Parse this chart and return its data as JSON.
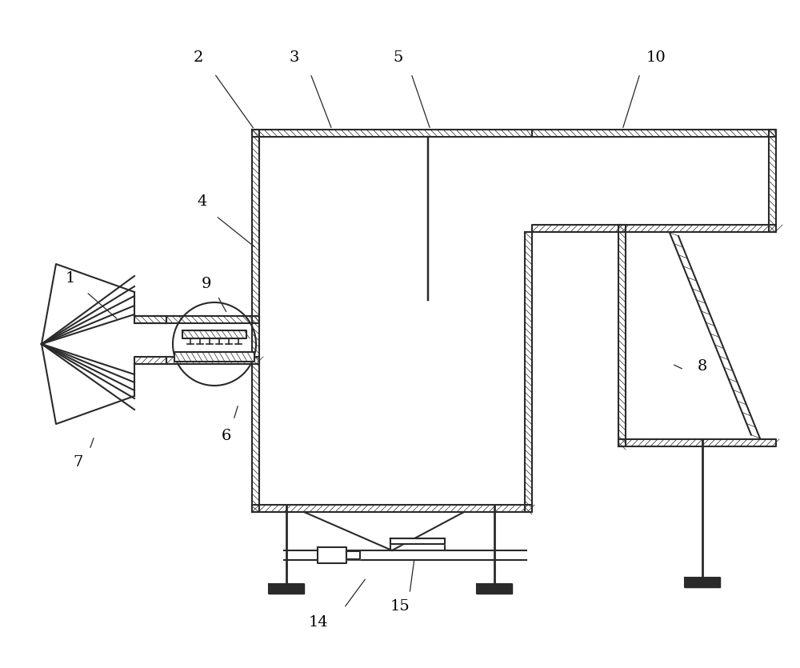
{
  "bg_color": "#ffffff",
  "line_color": "#2a2a2a",
  "lw": 1.5,
  "wt": 9,
  "annotations": [
    [
      "1",
      88,
      348,
      108,
      365,
      148,
      400
    ],
    [
      "2",
      248,
      72,
      268,
      92,
      318,
      162
    ],
    [
      "3",
      368,
      72,
      388,
      92,
      415,
      162
    ],
    [
      "4",
      253,
      252,
      270,
      270,
      320,
      310
    ],
    [
      "5",
      498,
      72,
      514,
      92,
      538,
      162
    ],
    [
      "6",
      283,
      545,
      292,
      525,
      298,
      505
    ],
    [
      "7",
      98,
      578,
      112,
      562,
      118,
      545
    ],
    [
      "8",
      878,
      458,
      855,
      462,
      840,
      455
    ],
    [
      "9",
      258,
      355,
      272,
      370,
      284,
      392
    ],
    [
      "10",
      820,
      72,
      800,
      92,
      778,
      162
    ],
    [
      "14",
      398,
      778,
      430,
      760,
      458,
      722
    ],
    [
      "15",
      500,
      758,
      512,
      742,
      518,
      698
    ]
  ]
}
